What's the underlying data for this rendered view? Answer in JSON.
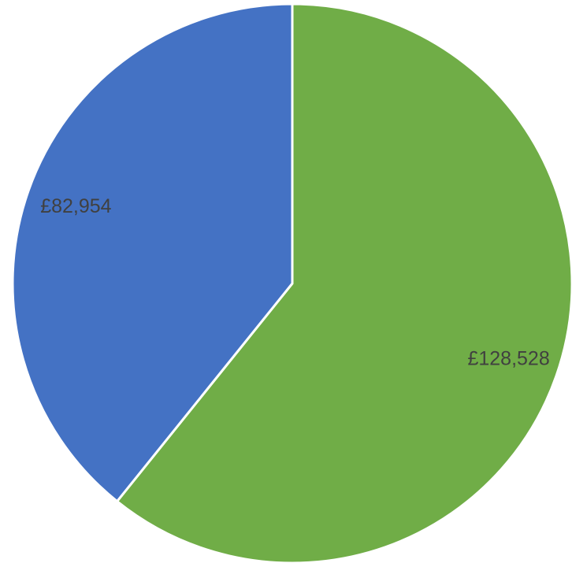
{
  "chart_data": {
    "type": "pie",
    "categories": [
      "",
      ""
    ],
    "values": [
      128528,
      82954
    ],
    "data_labels": [
      "£128,528",
      "£82,954"
    ],
    "colors": [
      "#70ad47",
      "#4472c4"
    ],
    "start_angle": "12 o'clock",
    "direction": "clockwise",
    "legend": "none"
  }
}
